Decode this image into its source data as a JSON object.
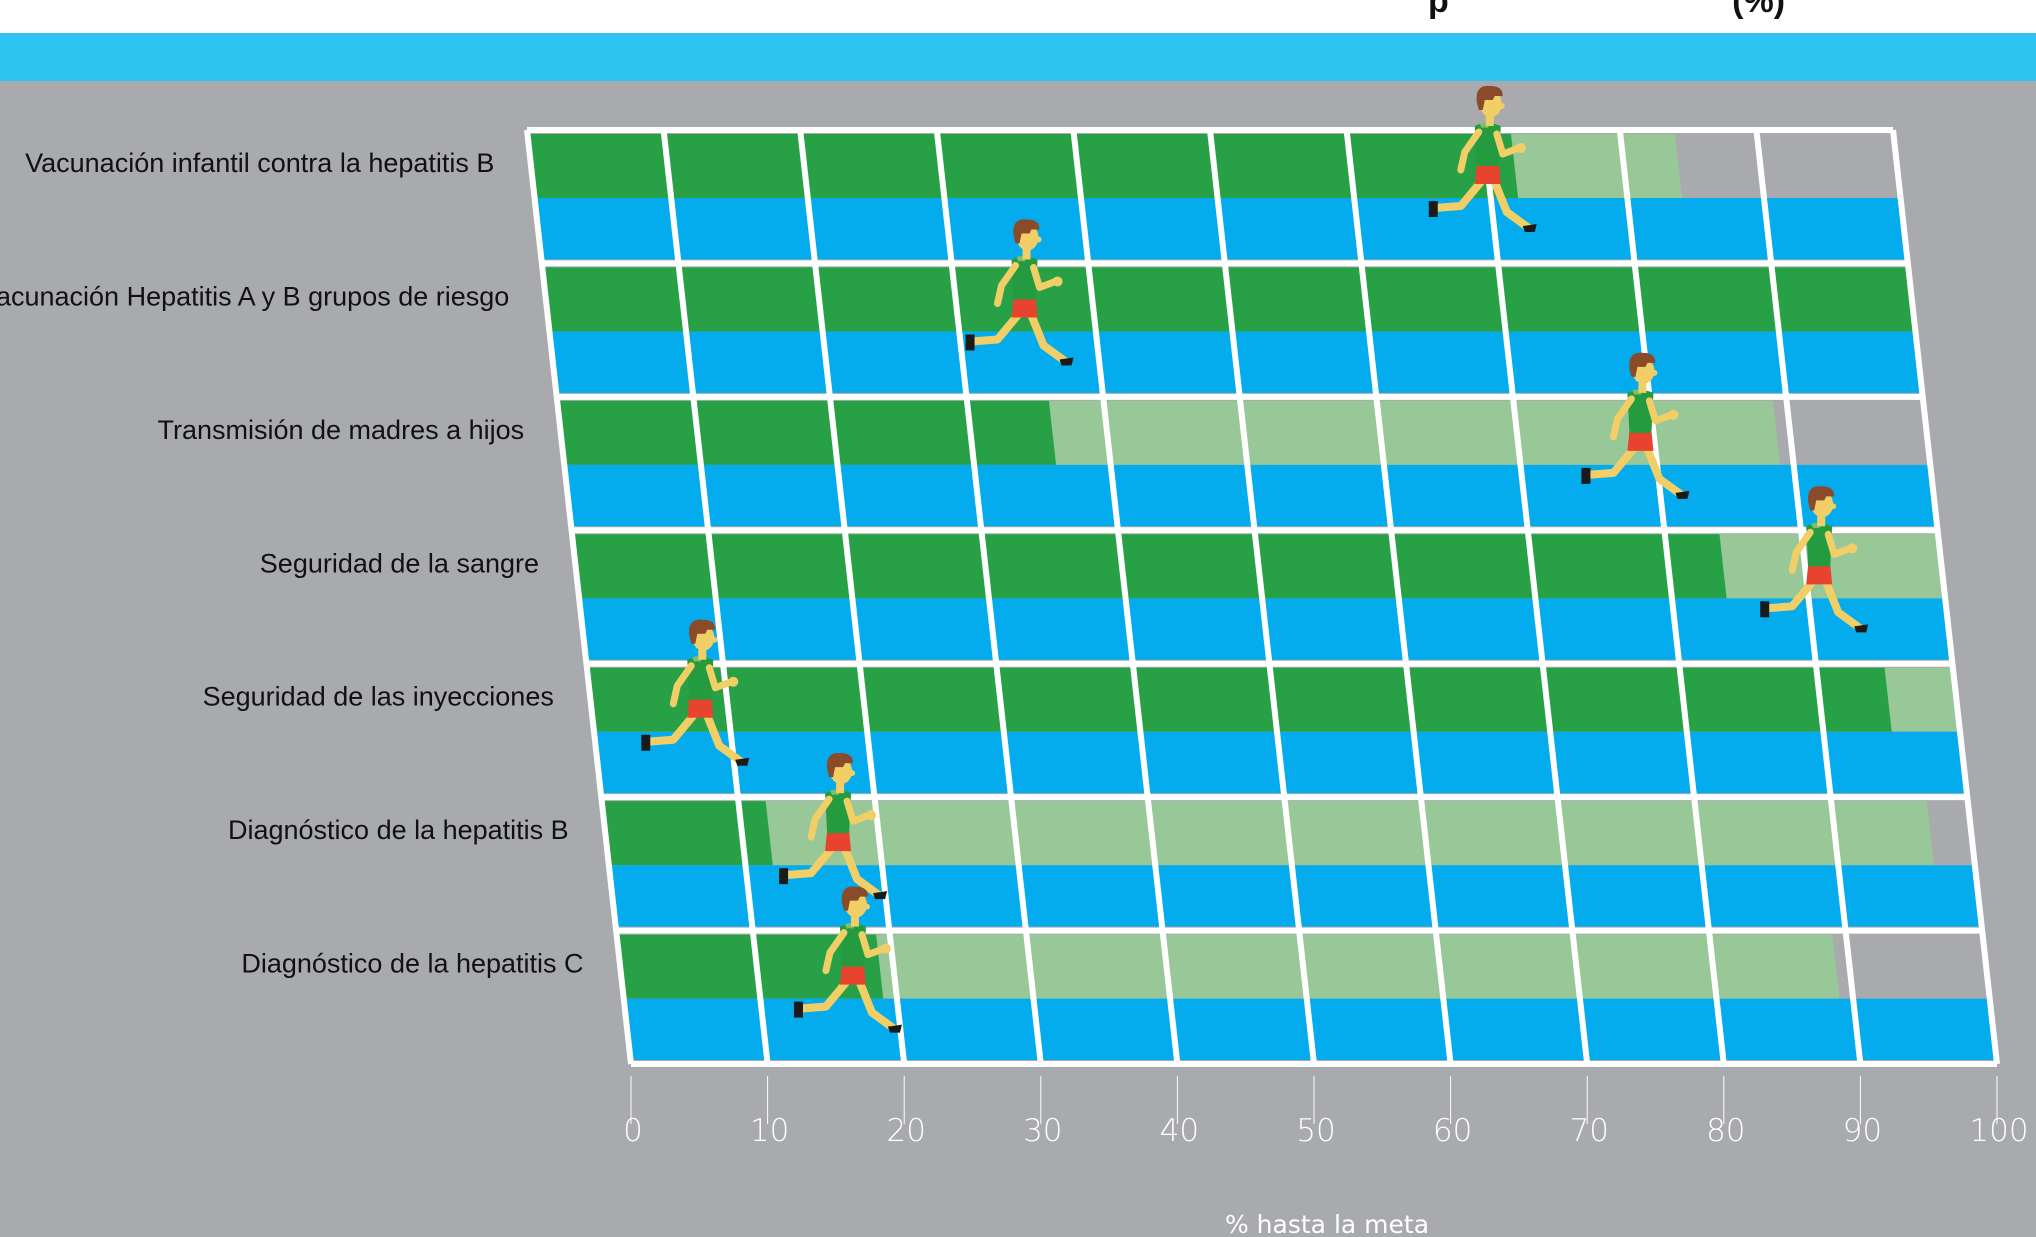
{
  "title_visible_fragment": "p                              (%)",
  "colors": {
    "background": "#a9aaad",
    "band": "#2ec3f1",
    "achieved": "#27a046",
    "remaining": "#98c897",
    "lane": "#05aced",
    "grid": "#ffffff"
  },
  "chart_data": {
    "type": "bar",
    "orientation": "horizontal",
    "categories": [
      "Vacunación infantil contra la hepatitis B",
      "Vacunación Hepatitis A y B grupos de riesgo",
      "Transmisión de madres a hijos",
      "Seguridad de la sangre",
      "Seguridad de las inyecciones",
      "Diagnóstico de la hepatitis B",
      "Diagnóstico de la hepatitis C"
    ],
    "series": [
      {
        "values": [
          72,
          100,
          36,
          84,
          95,
          12,
          19
        ]
      },
      {
        "values": [
          84,
          100,
          89,
          100,
          100,
          97,
          89
        ]
      }
    ],
    "runner_positions": [
      70,
      35,
      79,
      91,
      8,
      17,
      17
    ],
    "xlabel": "% hasta la meta",
    "xlim": [
      0,
      100
    ],
    "xticks": [
      "0",
      "10",
      "20",
      "30",
      "40",
      "50",
      "60",
      "70",
      "80",
      "90",
      "100"
    ],
    "grid": true
  }
}
